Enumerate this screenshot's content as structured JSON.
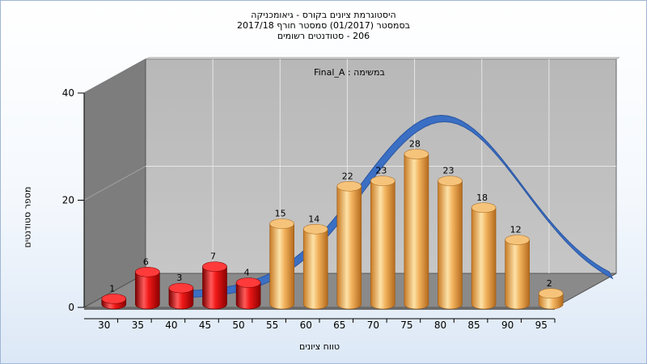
{
  "chart_data": {
    "type": "bar",
    "title_lines": [
      "היסטוגרמת ציונים בקורס - גיאומכניקה",
      "בסמסטר  (01/2017)  סמסטר חורף 2017/18",
      "206 - סטודנטים רשומים"
    ],
    "annotation": "במשימה : Final_A",
    "xlabel": "טווח ציונים",
    "ylabel": "מספר סטודנטים",
    "categories": [
      "30",
      "35",
      "40",
      "45",
      "50",
      "55",
      "60",
      "65",
      "70",
      "75",
      "80",
      "85",
      "90",
      "95"
    ],
    "values": [
      1,
      6,
      3,
      7,
      4,
      15,
      14,
      22,
      23,
      28,
      23,
      18,
      12,
      2
    ],
    "y_ticks": [
      "0",
      "20",
      "40"
    ],
    "ylim": [
      0,
      40
    ],
    "grid": true,
    "bar_colors": {
      "fail": "#e01010",
      "pass": "#e8a444"
    },
    "fail_threshold": 55,
    "curve_color": "#3a6fc4"
  }
}
